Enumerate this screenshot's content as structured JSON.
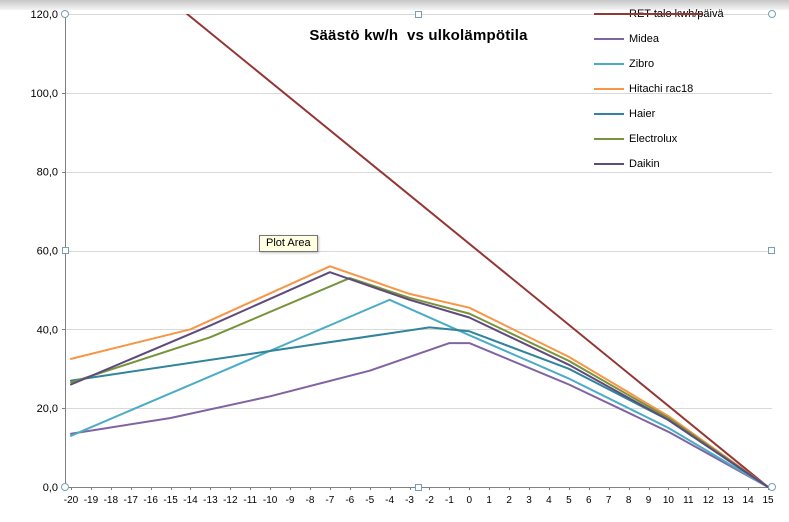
{
  "chart_data": {
    "type": "line",
    "title": "Säästö kw/h  vs ulkolämpötila",
    "xlim": [
      -20,
      15
    ],
    "ylim": [
      0,
      120
    ],
    "x_step": 1,
    "y_step": 20,
    "grid": true,
    "legend_position": "top-right",
    "x_tick_labels": [
      "-20",
      "-19",
      "-18",
      "-17",
      "-16",
      "-15",
      "-14",
      "-13",
      "-12",
      "-11",
      "-10",
      "-9",
      "-8",
      "-7",
      "-6",
      "-5",
      "-4",
      "-3",
      "-2",
      "-1",
      "0",
      "1",
      "2",
      "3",
      "4",
      "5",
      "6",
      "7",
      "8",
      "9",
      "10",
      "11",
      "12",
      "13",
      "14",
      "15"
    ],
    "y_tick_labels": [
      "0,0",
      "20,0",
      "40,0",
      "60,0",
      "80,0",
      "100,0",
      "120,0"
    ],
    "series": [
      {
        "name": "RET talo kwh/päivä",
        "color": "#943634",
        "key_through_text": true,
        "points": [
          [
            -20,
            144
          ],
          [
            15,
            0
          ]
        ]
      },
      {
        "name": "Midea",
        "color": "#8064A2",
        "key_through_text": false,
        "points": [
          [
            -20,
            13.5
          ],
          [
            -15,
            17.5
          ],
          [
            -10,
            23
          ],
          [
            -5,
            29.5
          ],
          [
            -1,
            36.5
          ],
          [
            0,
            36.5
          ],
          [
            5,
            26
          ],
          [
            10,
            14
          ],
          [
            15,
            0
          ]
        ]
      },
      {
        "name": "Zibro",
        "color": "#4BACC6",
        "key_through_text": false,
        "points": [
          [
            -20,
            13
          ],
          [
            -4,
            47.5
          ],
          [
            0,
            38.5
          ],
          [
            5,
            27.5
          ],
          [
            10,
            15
          ],
          [
            15,
            0
          ]
        ]
      },
      {
        "name": "Hitachi rac18",
        "color": "#F79646",
        "key_through_text": false,
        "points": [
          [
            -20,
            32.5
          ],
          [
            -14,
            40
          ],
          [
            -7,
            56
          ],
          [
            -3,
            49
          ],
          [
            0,
            45.5
          ],
          [
            5,
            33
          ],
          [
            10,
            18
          ],
          [
            15,
            0
          ]
        ]
      },
      {
        "name": "Haier",
        "color": "#31849B",
        "key_through_text": false,
        "points": [
          [
            -20,
            27
          ],
          [
            -10,
            34.5
          ],
          [
            -2,
            40.5
          ],
          [
            0,
            39.5
          ],
          [
            5,
            30
          ],
          [
            10,
            17
          ],
          [
            15,
            0
          ]
        ]
      },
      {
        "name": "Electrolux",
        "color": "#77933C",
        "key_through_text": false,
        "points": [
          [
            -20,
            26.5
          ],
          [
            -13,
            38
          ],
          [
            -6,
            53
          ],
          [
            -3,
            48
          ],
          [
            0,
            44
          ],
          [
            5,
            32
          ],
          [
            10,
            17.5
          ],
          [
            15,
            0
          ]
        ]
      },
      {
        "name": "Daikin",
        "color": "#604A7B",
        "key_through_text": false,
        "points": [
          [
            -20,
            26
          ],
          [
            -13,
            41
          ],
          [
            -7,
            54.5
          ],
          [
            -3,
            47.5
          ],
          [
            0,
            43
          ],
          [
            5,
            31
          ],
          [
            10,
            17
          ],
          [
            15,
            0
          ]
        ]
      }
    ]
  },
  "tooltip": {
    "label": "Plot Area"
  },
  "colors": {
    "grid": "#D9D9D9",
    "axis": "#808080",
    "tick_label": "#000000",
    "title": "#000000",
    "tooltip_bg": "#FFFFE1",
    "handle_border": "#76A0B0"
  }
}
